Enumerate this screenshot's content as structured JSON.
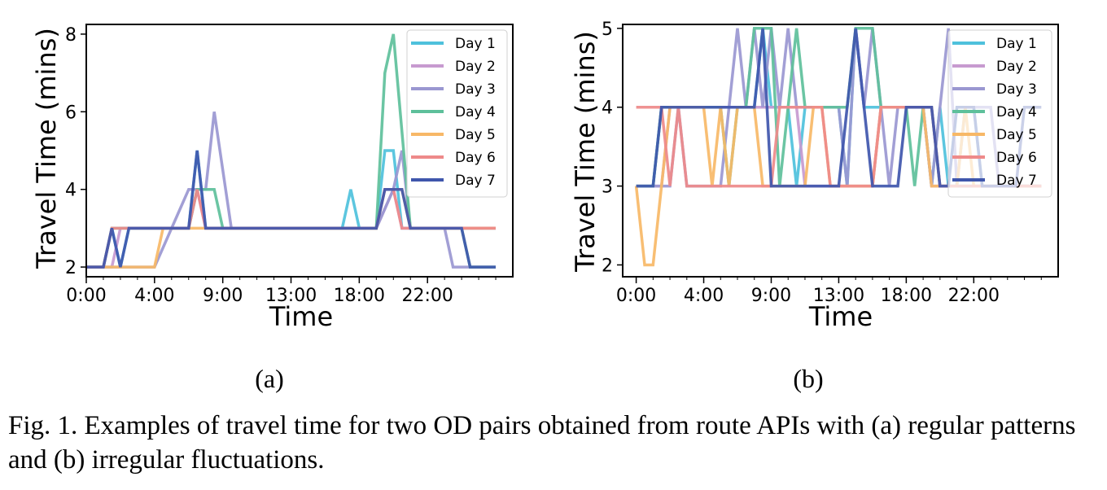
{
  "figure": {
    "caption": "Fig. 1.  Examples of travel time for two OD pairs obtained from route APIs with (a) regular patterns and (b) irregular fluctuations.",
    "colors": {
      "Day 1": "#4ec1dc",
      "Day 2": "#c79ad0",
      "Day 3": "#9a97d1",
      "Day 4": "#5ec09b",
      "Day 5": "#f7b867",
      "Day 6": "#ee8a8a",
      "Day 7": "#3f56ac"
    }
  },
  "chart_data": [
    {
      "type": "line",
      "panel_label": "(a)",
      "xlabel": "Time",
      "ylabel": "Travel Time (mins)",
      "xlim": [
        0,
        25
      ],
      "ylim": [
        1.75,
        8.25
      ],
      "x_ticks": [
        "0:00",
        "4:00",
        "9:00",
        "13:00",
        "18:00",
        "22:00"
      ],
      "y_ticks": [
        2,
        4,
        6,
        8
      ],
      "legend_position": "upper right",
      "grid": false,
      "series": [
        {
          "name": "Day 1",
          "points": [
            [
              0,
              2
            ],
            [
              1,
              2
            ],
            [
              1.5,
              3
            ],
            [
              2,
              2
            ],
            [
              2.5,
              3
            ],
            [
              6,
              3
            ],
            [
              6.5,
              5
            ],
            [
              7,
              3
            ],
            [
              15,
              3
            ],
            [
              15.5,
              4
            ],
            [
              16,
              3
            ],
            [
              17,
              3
            ],
            [
              17.5,
              5
            ],
            [
              18,
              5
            ],
            [
              18.5,
              3
            ],
            [
              24,
              3
            ]
          ]
        },
        {
          "name": "Day 2",
          "points": [
            [
              0,
              2
            ],
            [
              1.5,
              2
            ],
            [
              2,
              3
            ],
            [
              6,
              3
            ],
            [
              6.5,
              4
            ],
            [
              7,
              3
            ],
            [
              17,
              3
            ],
            [
              18,
              4
            ],
            [
              18.5,
              3
            ],
            [
              24,
              3
            ]
          ]
        },
        {
          "name": "Day 3",
          "points": [
            [
              0,
              2
            ],
            [
              4,
              2
            ],
            [
              5,
              3
            ],
            [
              6,
              4
            ],
            [
              7,
              4
            ],
            [
              7.5,
              6
            ],
            [
              8.5,
              3
            ],
            [
              17,
              3
            ],
            [
              18,
              4
            ],
            [
              18.5,
              5
            ],
            [
              19,
              3
            ],
            [
              21,
              3
            ],
            [
              21.5,
              2
            ],
            [
              24,
              2
            ]
          ]
        },
        {
          "name": "Day 4",
          "points": [
            [
              0,
              2
            ],
            [
              1,
              2
            ],
            [
              1.5,
              3
            ],
            [
              6,
              3
            ],
            [
              6.5,
              4
            ],
            [
              7.5,
              4
            ],
            [
              8,
              3
            ],
            [
              17,
              3
            ],
            [
              17.5,
              7
            ],
            [
              18,
              8
            ],
            [
              19,
              3
            ],
            [
              22,
              3
            ],
            [
              22.5,
              2
            ],
            [
              24,
              2
            ]
          ]
        },
        {
          "name": "Day 5",
          "points": [
            [
              0,
              2
            ],
            [
              4,
              2
            ],
            [
              4.5,
              3
            ],
            [
              17,
              3
            ],
            [
              17.5,
              4
            ],
            [
              18.5,
              4
            ],
            [
              19,
              3
            ],
            [
              24,
              3
            ]
          ]
        },
        {
          "name": "Day 6",
          "points": [
            [
              0,
              2
            ],
            [
              1,
              2
            ],
            [
              1.5,
              3
            ],
            [
              6,
              3
            ],
            [
              6.5,
              4
            ],
            [
              7,
              3
            ],
            [
              17,
              3
            ],
            [
              17.5,
              4
            ],
            [
              18,
              4
            ],
            [
              18.5,
              3
            ],
            [
              24,
              3
            ]
          ]
        },
        {
          "name": "Day 7",
          "points": [
            [
              0,
              2
            ],
            [
              1,
              2
            ],
            [
              1.5,
              3
            ],
            [
              2,
              2
            ],
            [
              2.5,
              3
            ],
            [
              6,
              3
            ],
            [
              6.5,
              5
            ],
            [
              7,
              3
            ],
            [
              17,
              3
            ],
            [
              17.5,
              4
            ],
            [
              18.5,
              4
            ],
            [
              19,
              3
            ],
            [
              22,
              3
            ],
            [
              22.5,
              2
            ],
            [
              24,
              2
            ]
          ]
        }
      ]
    },
    {
      "type": "line",
      "panel_label": "(b)",
      "xlabel": "Time",
      "ylabel": "Travel Time (mins)",
      "xlim": [
        -0.8,
        25
      ],
      "ylim": [
        1.85,
        5.05
      ],
      "x_ticks": [
        "0:00",
        "4:00",
        "9:00",
        "13:00",
        "18:00",
        "22:00"
      ],
      "y_ticks": [
        2,
        3,
        4,
        5
      ],
      "legend_position": "upper right",
      "grid": false,
      "series": [
        {
          "name": "Day 1",
          "points": [
            [
              0,
              3
            ],
            [
              1,
              3
            ],
            [
              1.5,
              4
            ],
            [
              7,
              4
            ],
            [
              7.5,
              5
            ],
            [
              8,
              4
            ],
            [
              9,
              4
            ],
            [
              9.5,
              3
            ],
            [
              10,
              4
            ],
            [
              12,
              4
            ],
            [
              12.5,
              3
            ],
            [
              13,
              5
            ],
            [
              13.5,
              4
            ],
            [
              17,
              4
            ],
            [
              17.5,
              3
            ],
            [
              18,
              4
            ],
            [
              18.5,
              3
            ],
            [
              19,
              4
            ],
            [
              20,
              4
            ],
            [
              20.5,
              3
            ],
            [
              24,
              3
            ]
          ]
        },
        {
          "name": "Day 2",
          "points": [
            [
              0,
              3
            ],
            [
              1.5,
              3
            ],
            [
              2,
              4
            ],
            [
              9.5,
              4
            ],
            [
              10,
              3
            ],
            [
              14,
              3
            ],
            [
              14.5,
              4
            ],
            [
              17,
              4
            ],
            [
              17.5,
              3
            ],
            [
              24,
              3
            ]
          ]
        },
        {
          "name": "Day 3",
          "points": [
            [
              0,
              3
            ],
            [
              2,
              3
            ],
            [
              2.5,
              4
            ],
            [
              3,
              3
            ],
            [
              5,
              3
            ],
            [
              6,
              5
            ],
            [
              6.5,
              4
            ],
            [
              7,
              5
            ],
            [
              7.5,
              4
            ],
            [
              8,
              5
            ],
            [
              8.5,
              4
            ],
            [
              9,
              5
            ],
            [
              9.5,
              4
            ],
            [
              12,
              4
            ],
            [
              12.5,
              3
            ],
            [
              13,
              5
            ],
            [
              13.5,
              4
            ],
            [
              14,
              5
            ],
            [
              14.5,
              4
            ],
            [
              15,
              3
            ],
            [
              15.5,
              4
            ],
            [
              17,
              4
            ],
            [
              17.5,
              3
            ],
            [
              18,
              4
            ],
            [
              18.5,
              5
            ],
            [
              19,
              3
            ],
            [
              19.5,
              4
            ],
            [
              21,
              4
            ],
            [
              21.5,
              3
            ],
            [
              24,
              3
            ]
          ]
        },
        {
          "name": "Day 4",
          "points": [
            [
              0,
              3
            ],
            [
              1,
              3
            ],
            [
              1.5,
              4
            ],
            [
              5,
              4
            ],
            [
              5.5,
              3
            ],
            [
              6,
              4
            ],
            [
              6.5,
              4
            ],
            [
              7,
              5
            ],
            [
              8,
              5
            ],
            [
              8.5,
              3
            ],
            [
              9,
              4
            ],
            [
              9.5,
              5
            ],
            [
              10,
              4
            ],
            [
              12.5,
              4
            ],
            [
              13,
              5
            ],
            [
              14,
              5
            ],
            [
              14.5,
              4
            ],
            [
              16,
              4
            ],
            [
              16.5,
              3
            ],
            [
              17,
              4
            ],
            [
              17.5,
              4
            ],
            [
              18,
              3
            ],
            [
              24,
              3
            ]
          ]
        },
        {
          "name": "Day 5",
          "points": [
            [
              0,
              3
            ],
            [
              0.5,
              2
            ],
            [
              1,
              2
            ],
            [
              1.5,
              3
            ],
            [
              2,
              4
            ],
            [
              4,
              4
            ],
            [
              4.5,
              3
            ],
            [
              5,
              4
            ],
            [
              5.5,
              3
            ],
            [
              6,
              4
            ],
            [
              7,
              4
            ],
            [
              7.5,
              3
            ],
            [
              10,
              3
            ],
            [
              10.5,
              4
            ],
            [
              11,
              4
            ],
            [
              11.5,
              3
            ],
            [
              14,
              3
            ],
            [
              14.5,
              4
            ],
            [
              17,
              4
            ],
            [
              17.5,
              3
            ],
            [
              19,
              3
            ],
            [
              19.5,
              4
            ],
            [
              20,
              3
            ],
            [
              24,
              3
            ]
          ]
        },
        {
          "name": "Day 6",
          "points": [
            [
              0,
              4
            ],
            [
              1.5,
              4
            ],
            [
              2,
              3
            ],
            [
              2.5,
              4
            ],
            [
              3,
              3
            ],
            [
              8,
              3
            ],
            [
              8.5,
              4
            ],
            [
              11,
              4
            ],
            [
              11.5,
              3
            ],
            [
              14,
              3
            ],
            [
              14.5,
              4
            ],
            [
              17.5,
              4
            ],
            [
              18,
              3
            ],
            [
              24,
              3
            ]
          ]
        },
        {
          "name": "Day 7",
          "points": [
            [
              0,
              3
            ],
            [
              1,
              3
            ],
            [
              1.5,
              4
            ],
            [
              7,
              4
            ],
            [
              7.5,
              5
            ],
            [
              8,
              3
            ],
            [
              12,
              3
            ],
            [
              12.5,
              4
            ],
            [
              13,
              5
            ],
            [
              13.5,
              4
            ],
            [
              14,
              3
            ],
            [
              15.5,
              3
            ],
            [
              16,
              4
            ],
            [
              17.5,
              4
            ],
            [
              18,
              3
            ],
            [
              18.5,
              3
            ],
            [
              19,
              4
            ],
            [
              20,
              4
            ],
            [
              20.5,
              3
            ],
            [
              22.5,
              3
            ],
            [
              23,
              4
            ],
            [
              24,
              4
            ]
          ]
        }
      ]
    }
  ]
}
